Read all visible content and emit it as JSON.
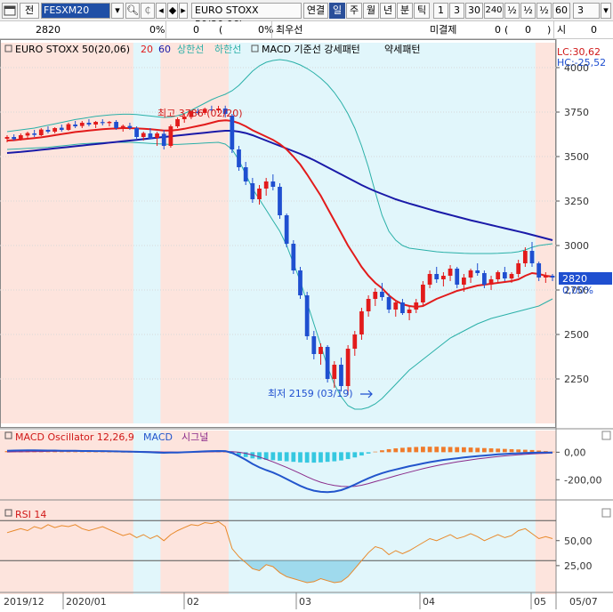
{
  "toolbar": {
    "menu_icon": "window-icon",
    "label_all": "전",
    "symbol_code": "FESXM20",
    "instrument_name": "EURO STOXX 50(20.06)",
    "btn_continuous": "연결",
    "period_tabs": [
      "일",
      "주",
      "월",
      "년",
      "분",
      "틱"
    ],
    "selected_period": "일",
    "number_buttons": [
      "1",
      "3",
      "30",
      "240",
      "½",
      "½",
      "½",
      "60"
    ],
    "interval_value": "3"
  },
  "info": {
    "price": "2820",
    "change_pct": "0%",
    "volume": "0",
    "volume_paren": "(",
    "volume_val2": "0%",
    "volume_close": ")",
    "best_ask_label": "최우선",
    "unsettled_label": "미결제",
    "unsettled_value": "0",
    "unsettled_paren": "(",
    "unsettled_val2": "0",
    "unsettled_close": ")",
    "open_label": "시",
    "open_value": "0"
  },
  "legend": {
    "name": "EURO STOXX 50(20,06)",
    "ma20": "20",
    "ma60": "60",
    "upper": "상한선",
    "lower": "하한선",
    "macd_items": "MACD 기준선 강세패턴",
    "weak": "약세패턴",
    "lc": "LC:30,62",
    "hc": "HC:-25,52"
  },
  "annotations": {
    "high": "최고 3786 (02/20)",
    "low": "최저 2159 (03/19)"
  },
  "price_axis": {
    "ticks": [
      "4000",
      "3750",
      "3500",
      "3250",
      "3000",
      "2750",
      "2500",
      "2250"
    ],
    "current_price": "2820",
    "current_pct": "0,00%"
  },
  "macd_panel": {
    "title": "MACD Oscillator 12,26,9",
    "macd_label": "MACD",
    "signal_label": "시그널",
    "ticks": [
      "0,00",
      "-200,00"
    ]
  },
  "rsi_panel": {
    "title": "RSI 14",
    "ticks": [
      "50,00",
      "25,00"
    ]
  },
  "date_axis": [
    "2019/12",
    "2020/01",
    "02",
    "03",
    "04",
    "05",
    "05/07"
  ],
  "colors": {
    "up": "#e21b1b",
    "down": "#1f4fd0",
    "ma20": "#e21b1b",
    "ma60": "#1a1aa8",
    "band": "#2ab0a8",
    "shade_pink": "#fde4dd",
    "shade_cyan": "#e1f6fb",
    "macd_line": "#2255cc",
    "signal_line": "#8a2a8a",
    "osc_pos": "#f07a2a",
    "osc_neg": "#35c8e0",
    "rsi_line": "#e8892a"
  },
  "chart_data": [
    {
      "type": "candlestick",
      "title": "EURO STOXX 50(20,06)",
      "ylim": [
        2000,
        4050
      ],
      "y_ticks": [
        2250,
        2500,
        2750,
        3000,
        3250,
        3500,
        3750,
        4000
      ],
      "ohlc": [
        [
          3600,
          3620,
          3580,
          3610
        ],
        [
          3610,
          3625,
          3590,
          3598
        ],
        [
          3600,
          3630,
          3590,
          3620
        ],
        [
          3618,
          3640,
          3605,
          3632
        ],
        [
          3630,
          3650,
          3610,
          3622
        ],
        [
          3620,
          3660,
          3615,
          3652
        ],
        [
          3650,
          3670,
          3630,
          3640
        ],
        [
          3640,
          3665,
          3630,
          3660
        ],
        [
          3662,
          3680,
          3640,
          3650
        ],
        [
          3650,
          3690,
          3645,
          3682
        ],
        [
          3680,
          3700,
          3660,
          3670
        ],
        [
          3672,
          3700,
          3660,
          3690
        ],
        [
          3690,
          3710,
          3670,
          3680
        ],
        [
          3680,
          3700,
          3660,
          3695
        ],
        [
          3694,
          3710,
          3675,
          3688
        ],
        [
          3688,
          3700,
          3670,
          3695
        ],
        [
          3695,
          3705,
          3650,
          3660
        ],
        [
          3660,
          3680,
          3640,
          3672
        ],
        [
          3672,
          3690,
          3650,
          3660
        ],
        [
          3660,
          3670,
          3600,
          3610
        ],
        [
          3610,
          3640,
          3590,
          3632
        ],
        [
          3630,
          3660,
          3610,
          3600
        ],
        [
          3605,
          3640,
          3560,
          3630
        ],
        [
          3628,
          3650,
          3540,
          3560
        ],
        [
          3560,
          3680,
          3550,
          3670
        ],
        [
          3670,
          3720,
          3660,
          3710
        ],
        [
          3710,
          3740,
          3690,
          3725
        ],
        [
          3722,
          3760,
          3710,
          3755
        ],
        [
          3752,
          3770,
          3735,
          3745
        ],
        [
          3745,
          3775,
          3735,
          3768
        ],
        [
          3765,
          3786,
          3750,
          3760
        ],
        [
          3760,
          3785,
          3745,
          3770
        ],
        [
          3770,
          3786,
          3720,
          3740
        ],
        [
          3730,
          3740,
          3520,
          3540
        ],
        [
          3540,
          3560,
          3420,
          3440
        ],
        [
          3440,
          3470,
          3340,
          3360
        ],
        [
          3350,
          3380,
          3240,
          3260
        ],
        [
          3260,
          3340,
          3230,
          3320
        ],
        [
          3320,
          3380,
          3280,
          3360
        ],
        [
          3360,
          3400,
          3310,
          3330
        ],
        [
          3330,
          3350,
          3150,
          3170
        ],
        [
          3170,
          3180,
          2990,
          3010
        ],
        [
          3010,
          3030,
          2840,
          2860
        ],
        [
          2860,
          2880,
          2700,
          2720
        ],
        [
          2720,
          2740,
          2470,
          2490
        ],
        [
          2490,
          2520,
          2360,
          2390
        ],
        [
          2390,
          2450,
          2330,
          2430
        ],
        [
          2430,
          2440,
          2230,
          2250
        ],
        [
          2250,
          2350,
          2200,
          2330
        ],
        [
          2330,
          2370,
          2180,
          2210
        ],
        [
          2210,
          2440,
          2159,
          2420
        ],
        [
          2420,
          2520,
          2380,
          2500
        ],
        [
          2500,
          2650,
          2470,
          2630
        ],
        [
          2630,
          2720,
          2600,
          2700
        ],
        [
          2700,
          2760,
          2660,
          2740
        ],
        [
          2740,
          2790,
          2690,
          2710
        ],
        [
          2710,
          2730,
          2620,
          2640
        ],
        [
          2640,
          2690,
          2600,
          2680
        ],
        [
          2680,
          2700,
          2610,
          2620
        ],
        [
          2620,
          2660,
          2580,
          2640
        ],
        [
          2640,
          2700,
          2620,
          2680
        ],
        [
          2680,
          2800,
          2660,
          2780
        ],
        [
          2780,
          2860,
          2760,
          2840
        ],
        [
          2840,
          2880,
          2790,
          2810
        ],
        [
          2810,
          2850,
          2770,
          2830
        ],
        [
          2830,
          2890,
          2800,
          2870
        ],
        [
          2870,
          2880,
          2760,
          2780
        ],
        [
          2780,
          2840,
          2740,
          2820
        ],
        [
          2820,
          2870,
          2790,
          2860
        ],
        [
          2860,
          2900,
          2830,
          2845
        ],
        [
          2845,
          2860,
          2760,
          2780
        ],
        [
          2780,
          2830,
          2750,
          2810
        ],
        [
          2810,
          2860,
          2790,
          2850
        ],
        [
          2850,
          2880,
          2800,
          2815
        ],
        [
          2815,
          2850,
          2790,
          2840
        ],
        [
          2840,
          2920,
          2820,
          2900
        ],
        [
          2900,
          2990,
          2880,
          2970
        ],
        [
          2970,
          3020,
          2880,
          2900
        ],
        [
          2900,
          2910,
          2800,
          2820
        ],
        [
          2820,
          2850,
          2790,
          2830
        ],
        [
          2830,
          2840,
          2800,
          2820
        ]
      ],
      "ma20": [
        3590,
        3592,
        3596,
        3600,
        3604,
        3608,
        3614,
        3620,
        3626,
        3632,
        3638,
        3642,
        3646,
        3650,
        3654,
        3656,
        3658,
        3660,
        3660,
        3658,
        3656,
        3654,
        3650,
        3646,
        3646,
        3650,
        3656,
        3664,
        3672,
        3680,
        3690,
        3700,
        3704,
        3700,
        3688,
        3670,
        3648,
        3630,
        3612,
        3594,
        3570,
        3540,
        3500,
        3455,
        3400,
        3340,
        3280,
        3210,
        3140,
        3070,
        3000,
        2940,
        2880,
        2830,
        2790,
        2760,
        2720,
        2690,
        2670,
        2660,
        2655,
        2660,
        2680,
        2700,
        2715,
        2730,
        2745,
        2755,
        2765,
        2775,
        2780,
        2785,
        2790,
        2795,
        2800,
        2810,
        2830,
        2845,
        2840,
        2830,
        2825
      ],
      "ma60": [
        3520,
        3523,
        3526,
        3530,
        3534,
        3538,
        3542,
        3546,
        3550,
        3554,
        3558,
        3562,
        3566,
        3570,
        3574,
        3578,
        3582,
        3586,
        3590,
        3594,
        3598,
        3602,
        3606,
        3610,
        3614,
        3618,
        3622,
        3626,
        3630,
        3634,
        3638,
        3642,
        3645,
        3645,
        3640,
        3632,
        3620,
        3605,
        3590,
        3575,
        3560,
        3545,
        3530,
        3515,
        3498,
        3480,
        3460,
        3440,
        3420,
        3400,
        3380,
        3360,
        3340,
        3322,
        3305,
        3290,
        3275,
        3260,
        3248,
        3236,
        3225,
        3214,
        3203,
        3192,
        3182,
        3172,
        3162,
        3152,
        3142,
        3133,
        3124,
        3115,
        3106,
        3097,
        3088,
        3079,
        3070,
        3060,
        3050,
        3040,
        3030
      ],
      "bb_upper": [
        3640,
        3645,
        3650,
        3655,
        3660,
        3668,
        3676,
        3684,
        3692,
        3700,
        3708,
        3714,
        3720,
        3726,
        3730,
        3734,
        3736,
        3738,
        3738,
        3736,
        3732,
        3728,
        3724,
        3720,
        3722,
        3730,
        3742,
        3760,
        3780,
        3800,
        3820,
        3836,
        3850,
        3870,
        3900,
        3940,
        3980,
        4010,
        4030,
        4040,
        4045,
        4040,
        4030,
        4015,
        3995,
        3970,
        3940,
        3905,
        3860,
        3805,
        3740,
        3660,
        3560,
        3440,
        3300,
        3170,
        3080,
        3030,
        3000,
        2985,
        2980,
        2975,
        2970,
        2965,
        2962,
        2960,
        2958,
        2956,
        2955,
        2955,
        2955,
        2955,
        2956,
        2958,
        2960,
        2965,
        2975,
        2990,
        3000,
        3005,
        3010
      ],
      "bb_lower": [
        3540,
        3542,
        3544,
        3546,
        3548,
        3550,
        3552,
        3556,
        3560,
        3564,
        3568,
        3572,
        3574,
        3576,
        3578,
        3580,
        3580,
        3580,
        3580,
        3578,
        3576,
        3574,
        3572,
        3570,
        3568,
        3568,
        3570,
        3572,
        3574,
        3576,
        3578,
        3580,
        3570,
        3540,
        3480,
        3400,
        3320,
        3260,
        3200,
        3140,
        3080,
        3000,
        2900,
        2800,
        2680,
        2560,
        2440,
        2320,
        2220,
        2150,
        2100,
        2080,
        2080,
        2090,
        2110,
        2140,
        2180,
        2220,
        2260,
        2300,
        2330,
        2360,
        2390,
        2420,
        2450,
        2480,
        2500,
        2520,
        2540,
        2560,
        2575,
        2590,
        2600,
        2610,
        2620,
        2630,
        2640,
        2650,
        2660,
        2680,
        2700
      ]
    },
    {
      "type": "bar",
      "title": "MACD Oscillator 12,26,9",
      "series": [
        {
          "name": "MACD"
        },
        {
          "name": "시그널"
        }
      ],
      "ylim": [
        -360,
        80
      ],
      "y_ticks": [
        0,
        -200
      ],
      "oscillator": [
        8,
        9,
        10,
        10,
        9,
        8,
        7,
        6,
        5,
        5,
        4,
        4,
        3,
        3,
        3,
        2,
        2,
        1,
        1,
        0,
        -1,
        -2,
        -3,
        -3,
        -2,
        -1,
        0,
        1,
        2,
        3,
        3,
        3,
        2,
        -10,
        -22,
        -35,
        -45,
        -52,
        -55,
        -58,
        -62,
        -66,
        -70,
        -74,
        -76,
        -76,
        -74,
        -70,
        -66,
        -60,
        -50,
        -38,
        -24,
        -10,
        4,
        14,
        22,
        28,
        32,
        36,
        38,
        40,
        40,
        40,
        39,
        38,
        37,
        36,
        34,
        32,
        30,
        28,
        26,
        24,
        22,
        20,
        18,
        16,
        12,
        8,
        4
      ],
      "macd": [
        10,
        12,
        13,
        14,
        14,
        13,
        12,
        12,
        11,
        10,
        10,
        9,
        9,
        8,
        8,
        7,
        6,
        5,
        4,
        3,
        2,
        0,
        -2,
        -4,
        -3,
        -2,
        0,
        2,
        4,
        6,
        8,
        9,
        8,
        -5,
        -28,
        -55,
        -85,
        -110,
        -130,
        -148,
        -170,
        -195,
        -220,
        -245,
        -265,
        -280,
        -288,
        -290,
        -286,
        -276,
        -258,
        -236,
        -212,
        -190,
        -170,
        -152,
        -138,
        -126,
        -114,
        -102,
        -92,
        -82,
        -72,
        -64,
        -56,
        -50,
        -44,
        -38,
        -33,
        -28,
        -24,
        -20,
        -16,
        -13,
        -10,
        -8,
        -6,
        -4,
        -3,
        -2,
        -2
      ],
      "signal": [
        2,
        3,
        3,
        4,
        5,
        5,
        6,
        6,
        7,
        7,
        7,
        7,
        7,
        7,
        7,
        7,
        6,
        6,
        6,
        5,
        5,
        4,
        3,
        2,
        2,
        1,
        1,
        1,
        1,
        2,
        3,
        4,
        5,
        4,
        0,
        -8,
        -20,
        -35,
        -52,
        -70,
        -90,
        -110,
        -132,
        -155,
        -178,
        -200,
        -218,
        -232,
        -242,
        -248,
        -250,
        -248,
        -240,
        -228,
        -214,
        -200,
        -186,
        -172,
        -158,
        -145,
        -132,
        -120,
        -108,
        -98,
        -88,
        -79,
        -71,
        -63,
        -56,
        -49,
        -43,
        -37,
        -32,
        -27,
        -23,
        -19,
        -15,
        -12,
        -10,
        -8,
        -6
      ]
    },
    {
      "type": "line",
      "title": "RSI 14",
      "ylim": [
        0,
        80
      ],
      "y_ticks": [
        25,
        50
      ],
      "levels": [
        70,
        30
      ],
      "series": [
        {
          "name": "RSI 14",
          "values": [
            58,
            60,
            62,
            60,
            64,
            62,
            66,
            63,
            65,
            64,
            66,
            62,
            60,
            62,
            64,
            61,
            58,
            55,
            57,
            53,
            56,
            52,
            55,
            50,
            56,
            60,
            63,
            66,
            65,
            68,
            67,
            69,
            64,
            42,
            34,
            28,
            22,
            20,
            26,
            24,
            18,
            14,
            12,
            10,
            8,
            9,
            12,
            10,
            8,
            9,
            14,
            22,
            30,
            38,
            44,
            42,
            36,
            40,
            37,
            40,
            44,
            48,
            52,
            50,
            53,
            56,
            52,
            54,
            57,
            54,
            50,
            53,
            56,
            53,
            55,
            60,
            62,
            57,
            52,
            54,
            52
          ]
        }
      ]
    }
  ]
}
